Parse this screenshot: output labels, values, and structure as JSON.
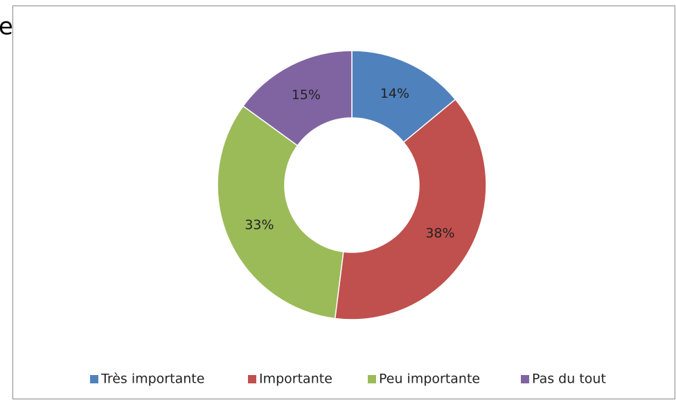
{
  "fragment": "e",
  "chart_data": {
    "type": "donut",
    "categories": [
      "Très importante",
      "Importante",
      "Peu importante",
      "Pas du tout"
    ],
    "values": [
      14,
      38,
      33,
      15
    ],
    "value_labels": [
      "14%",
      "38%",
      "33%",
      "15%"
    ],
    "colors": [
      "#4f81bd",
      "#c0504d",
      "#9bbb59",
      "#8064a2"
    ],
    "legend": "bottom"
  }
}
